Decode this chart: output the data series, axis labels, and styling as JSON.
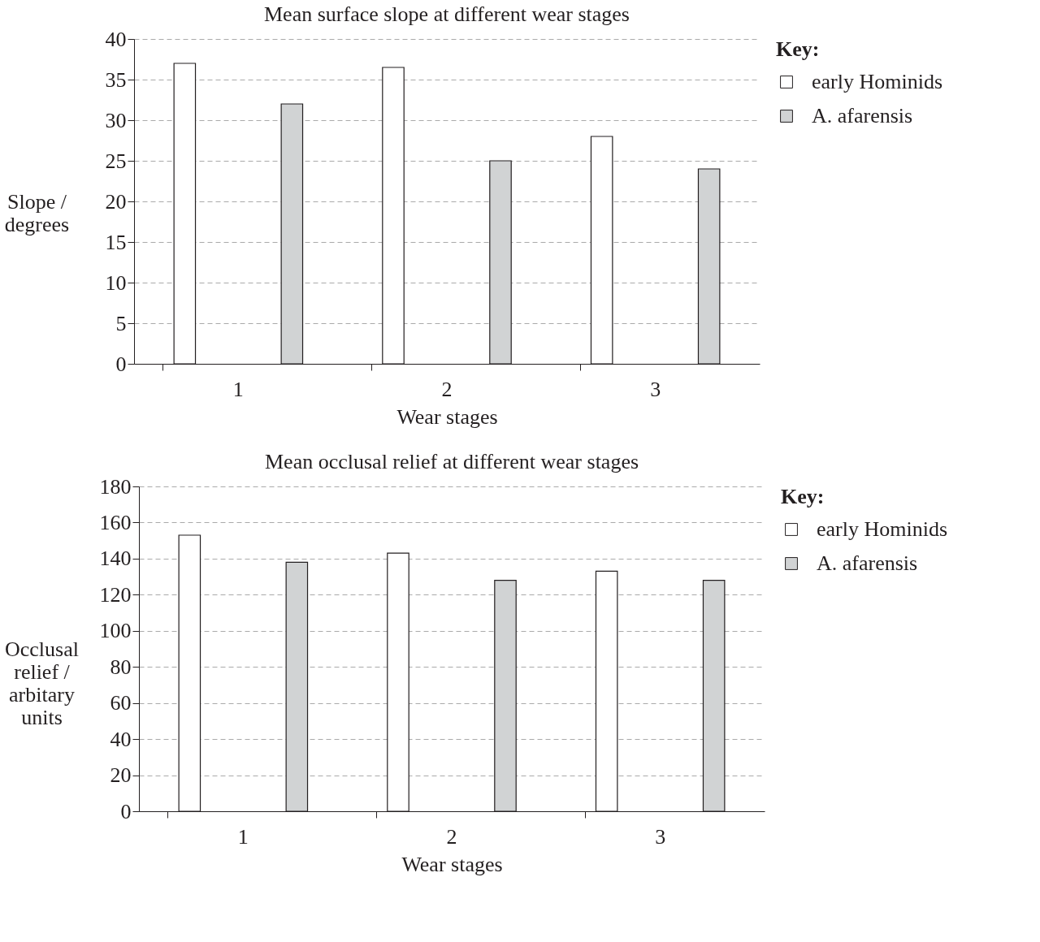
{
  "chart_data": [
    {
      "type": "bar",
      "title": "Mean surface slope at different wear stages",
      "xlabel": "Wear stages",
      "ylabel": "Slope / degrees",
      "legend_title": "Key:",
      "categories": [
        "1",
        "2",
        "3"
      ],
      "series": [
        {
          "name": "early Hominids",
          "color": "#ffffff",
          "values": [
            37,
            36.5,
            28
          ]
        },
        {
          "name": "A. afarensis",
          "color": "#d1d3d4",
          "values": [
            32,
            25,
            24
          ]
        }
      ],
      "ylim": [
        0,
        40
      ],
      "yticks": [
        0,
        5,
        10,
        15,
        20,
        25,
        30,
        35,
        40
      ],
      "grid": "y",
      "legend": "top right"
    },
    {
      "type": "bar",
      "title": "Mean occlusal relief at different wear stages",
      "xlabel": "Wear stages",
      "ylabel": "Occlusal relief / arbitary units",
      "legend_title": "Key:",
      "categories": [
        "1",
        "2",
        "3"
      ],
      "series": [
        {
          "name": "early Hominids",
          "color": "#ffffff",
          "values": [
            153,
            143,
            133
          ]
        },
        {
          "name": "A. afarensis",
          "color": "#d1d3d4",
          "values": [
            138,
            128,
            128
          ]
        }
      ],
      "ylim": [
        0,
        180
      ],
      "yticks": [
        0,
        20,
        40,
        60,
        80,
        100,
        120,
        140,
        160,
        180
      ],
      "grid": "y",
      "legend": "top right"
    }
  ]
}
